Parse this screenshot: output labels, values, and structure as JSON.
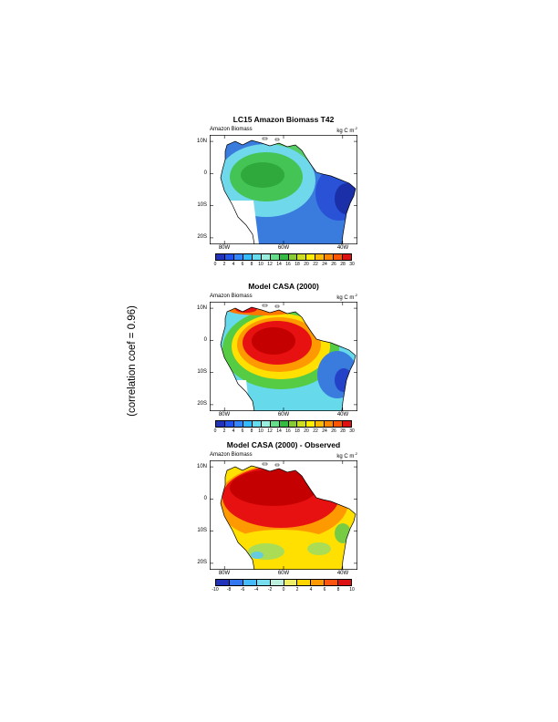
{
  "page": {
    "side_label": "(correlation coef =  0.96)"
  },
  "panel_common": {
    "map_label": "Amazon Biomass",
    "units_base": "kg C m",
    "units_exp": "-2",
    "axes": {
      "lat_ticks": [
        "10N",
        "0",
        "10S",
        "20S"
      ],
      "lon_ticks": [
        "80W",
        "60W",
        "40W"
      ]
    }
  },
  "panels": [
    {
      "title": "LC15 Amazon Biomass T42",
      "colorbar": {
        "ticks": [
          "0",
          "2",
          "4",
          "6",
          "8",
          "10",
          "12",
          "14",
          "16",
          "18",
          "20",
          "22",
          "24",
          "26",
          "28",
          "30"
        ],
        "colors": [
          "#2233BB",
          "#2255EE",
          "#3388FF",
          "#33BBFF",
          "#66DDEE",
          "#99EEDD",
          "#66DD88",
          "#33BB44",
          "#88CC33",
          "#CCDD22",
          "#FFEE00",
          "#FFBB00",
          "#FF8800",
          "#FF5500",
          "#DD1111"
        ]
      }
    },
    {
      "title": "Model CASA (2000)",
      "colorbar": {
        "ticks": [
          "0",
          "2",
          "4",
          "6",
          "8",
          "10",
          "12",
          "14",
          "16",
          "18",
          "20",
          "22",
          "24",
          "26",
          "28",
          "30"
        ],
        "colors": [
          "#2233BB",
          "#2255EE",
          "#3388FF",
          "#33BBFF",
          "#66DDEE",
          "#99EEDD",
          "#66DD88",
          "#33BB44",
          "#88CC33",
          "#CCDD22",
          "#FFEE00",
          "#FFBB00",
          "#FF8800",
          "#FF5500",
          "#DD1111"
        ]
      }
    },
    {
      "title": "Model CASA (2000) - Observed",
      "colorbar": {
        "ticks": [
          "-10",
          "-8",
          "-6",
          "-4",
          "-2",
          "0",
          "2",
          "4",
          "6",
          "8",
          "10"
        ],
        "colors": [
          "#2233BB",
          "#3377EE",
          "#44BBFF",
          "#77DDEE",
          "#BBEEDD",
          "#EEEE66",
          "#FFD500",
          "#FF9900",
          "#FF5511",
          "#DD1111"
        ]
      }
    }
  ]
}
